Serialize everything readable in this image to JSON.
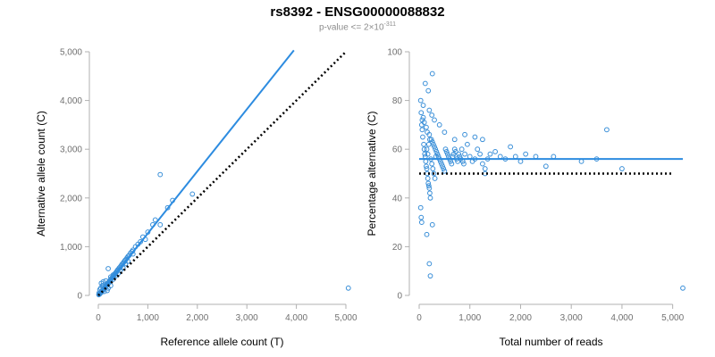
{
  "title": "rs8392 - ENSG00000088832",
  "subtitle": {
    "prefix": "p-value <= 2×10",
    "exponent": "-311"
  },
  "colors": {
    "point": "#3a8fd8",
    "fit_line": "#2d8ce0",
    "reference_line": "#000000"
  },
  "chart_data": [
    {
      "type": "scatter",
      "panel": "left",
      "xlabel": "Reference allele count (T)",
      "ylabel": "Alternative allele count (C)",
      "xlim": [
        0,
        5000
      ],
      "ylim": [
        0,
        5000
      ],
      "xticks": [
        0,
        1000,
        2000,
        3000,
        4000,
        5000
      ],
      "xtick_labels": [
        "0",
        "1,000",
        "2,000",
        "3,000",
        "4,000",
        "5,000"
      ],
      "yticks": [
        0,
        1000,
        2000,
        3000,
        4000,
        5000
      ],
      "ytick_labels": [
        "0",
        "1,000",
        "2,000",
        "3,000",
        "4,000",
        "5,000"
      ],
      "points": [
        [
          10,
          15
        ],
        [
          20,
          25
        ],
        [
          30,
          30
        ],
        [
          15,
          50
        ],
        [
          40,
          45
        ],
        [
          50,
          60
        ],
        [
          60,
          80
        ],
        [
          70,
          70
        ],
        [
          80,
          100
        ],
        [
          90,
          110
        ],
        [
          100,
          120
        ],
        [
          110,
          140
        ],
        [
          120,
          150
        ],
        [
          130,
          170
        ],
        [
          140,
          160
        ],
        [
          150,
          190
        ],
        [
          160,
          200
        ],
        [
          170,
          210
        ],
        [
          180,
          230
        ],
        [
          190,
          250
        ],
        [
          200,
          240
        ],
        [
          210,
          270
        ],
        [
          220,
          280
        ],
        [
          230,
          300
        ],
        [
          240,
          310
        ],
        [
          250,
          320
        ],
        [
          260,
          340
        ],
        [
          270,
          350
        ],
        [
          280,
          360
        ],
        [
          290,
          380
        ],
        [
          300,
          390
        ],
        [
          310,
          400
        ],
        [
          320,
          420
        ],
        [
          330,
          430
        ],
        [
          340,
          450
        ],
        [
          350,
          460
        ],
        [
          360,
          470
        ],
        [
          370,
          490
        ],
        [
          380,
          500
        ],
        [
          390,
          520
        ],
        [
          400,
          530
        ],
        [
          420,
          560
        ],
        [
          440,
          580
        ],
        [
          460,
          610
        ],
        [
          480,
          640
        ],
        [
          500,
          660
        ],
        [
          520,
          690
        ],
        [
          540,
          720
        ],
        [
          560,
          740
        ],
        [
          580,
          770
        ],
        [
          600,
          800
        ],
        [
          620,
          820
        ],
        [
          650,
          870
        ],
        [
          680,
          900
        ],
        [
          700,
          930
        ],
        [
          60,
          250
        ],
        [
          80,
          200
        ],
        [
          100,
          280
        ],
        [
          50,
          150
        ],
        [
          30,
          120
        ],
        [
          120,
          80
        ],
        [
          200,
          150
        ],
        [
          250,
          200
        ],
        [
          150,
          300
        ],
        [
          180,
          100
        ],
        [
          300,
          330
        ],
        [
          350,
          400
        ],
        [
          400,
          450
        ],
        [
          450,
          520
        ],
        [
          500,
          560
        ],
        [
          550,
          650
        ],
        [
          600,
          700
        ],
        [
          700,
          850
        ],
        [
          750,
          1000
        ],
        [
          800,
          1050
        ],
        [
          850,
          1100
        ],
        [
          900,
          1200
        ],
        [
          950,
          1150
        ],
        [
          1000,
          1300
        ],
        [
          1100,
          1450
        ],
        [
          1150,
          1550
        ],
        [
          1250,
          1450
        ],
        [
          1400,
          1800
        ],
        [
          1500,
          1950
        ],
        [
          1900,
          2080
        ],
        [
          1250,
          2480
        ],
        [
          200,
          550
        ],
        [
          300,
          420
        ],
        [
          100,
          200
        ],
        [
          250,
          380
        ],
        [
          5050,
          150
        ]
      ],
      "fit_line": {
        "x": [
          0,
          3950
        ],
        "y": [
          0,
          5030
        ]
      },
      "reference_line": {
        "x": [
          0,
          5000
        ],
        "y": [
          0,
          5000
        ]
      }
    },
    {
      "type": "scatter",
      "panel": "right",
      "xlabel": "Total number of reads",
      "ylabel": "Percentage alternative (C)",
      "xlim": [
        0,
        5200
      ],
      "ylim": [
        0,
        100
      ],
      "xticks": [
        0,
        1000,
        2000,
        3000,
        4000,
        5000
      ],
      "xtick_labels": [
        "0",
        "1,000",
        "2,000",
        "3,000",
        "4,000",
        "5,000"
      ],
      "yticks": [
        0,
        20,
        40,
        60,
        80,
        100
      ],
      "ytick_labels": [
        "0",
        "20",
        "40",
        "60",
        "80",
        "100"
      ],
      "points": [
        [
          30,
          80
        ],
        [
          40,
          75
        ],
        [
          50,
          70
        ],
        [
          60,
          68
        ],
        [
          70,
          65
        ],
        [
          80,
          78
        ],
        [
          90,
          62
        ],
        [
          100,
          60
        ],
        [
          110,
          58
        ],
        [
          120,
          57
        ],
        [
          130,
          55
        ],
        [
          140,
          53
        ],
        [
          150,
          52
        ],
        [
          160,
          50
        ],
        [
          170,
          48
        ],
        [
          180,
          46
        ],
        [
          190,
          45
        ],
        [
          200,
          44
        ],
        [
          210,
          42
        ],
        [
          220,
          40
        ],
        [
          30,
          36
        ],
        [
          40,
          32
        ],
        [
          50,
          30
        ],
        [
          150,
          25
        ],
        [
          200,
          13
        ],
        [
          220,
          8
        ],
        [
          260,
          29
        ],
        [
          260,
          91
        ],
        [
          120,
          87
        ],
        [
          180,
          84
        ],
        [
          60,
          72
        ],
        [
          80,
          73
        ],
        [
          100,
          71
        ],
        [
          140,
          69
        ],
        [
          160,
          67
        ],
        [
          200,
          66
        ],
        [
          240,
          64
        ],
        [
          260,
          63
        ],
        [
          280,
          62
        ],
        [
          300,
          61
        ],
        [
          320,
          60
        ],
        [
          340,
          59
        ],
        [
          360,
          58
        ],
        [
          380,
          57
        ],
        [
          400,
          56
        ],
        [
          420,
          55
        ],
        [
          440,
          54
        ],
        [
          460,
          53
        ],
        [
          480,
          52
        ],
        [
          500,
          51
        ],
        [
          520,
          60
        ],
        [
          540,
          59
        ],
        [
          560,
          58
        ],
        [
          580,
          57
        ],
        [
          600,
          56
        ],
        [
          620,
          55
        ],
        [
          640,
          54
        ],
        [
          660,
          57
        ],
        [
          680,
          58
        ],
        [
          700,
          60
        ],
        [
          720,
          59
        ],
        [
          740,
          56
        ],
        [
          760,
          55
        ],
        [
          780,
          58
        ],
        [
          800,
          57
        ],
        [
          820,
          56
        ],
        [
          840,
          60
        ],
        [
          860,
          55
        ],
        [
          880,
          54
        ],
        [
          900,
          58
        ],
        [
          950,
          62
        ],
        [
          1000,
          57
        ],
        [
          1050,
          55
        ],
        [
          1100,
          56
        ],
        [
          1150,
          60
        ],
        [
          1200,
          58
        ],
        [
          1250,
          54
        ],
        [
          1300,
          52
        ],
        [
          1350,
          56
        ],
        [
          1400,
          58
        ],
        [
          1300,
          50
        ],
        [
          1250,
          64
        ],
        [
          1100,
          65
        ],
        [
          900,
          66
        ],
        [
          700,
          64
        ],
        [
          500,
          67
        ],
        [
          400,
          70
        ],
        [
          300,
          72
        ],
        [
          250,
          74
        ],
        [
          200,
          76
        ],
        [
          150,
          60
        ],
        [
          170,
          58
        ],
        [
          190,
          62
        ],
        [
          210,
          64
        ],
        [
          230,
          56
        ],
        [
          250,
          54
        ],
        [
          270,
          52
        ],
        [
          290,
          50
        ],
        [
          310,
          48
        ],
        [
          330,
          57
        ],
        [
          1800,
          61
        ],
        [
          1900,
          57
        ],
        [
          2000,
          55
        ],
        [
          2100,
          58
        ],
        [
          2300,
          57
        ],
        [
          2500,
          53
        ],
        [
          2650,
          57
        ],
        [
          3200,
          55
        ],
        [
          3500,
          56
        ],
        [
          3700,
          68
        ],
        [
          4000,
          52
        ],
        [
          5200,
          3
        ],
        [
          1600,
          57
        ],
        [
          1700,
          56
        ],
        [
          1500,
          59
        ]
      ],
      "fit_line": {
        "x": [
          0,
          5200
        ],
        "y": [
          56,
          56
        ]
      },
      "reference_line": {
        "x": [
          0,
          5000
        ],
        "y": [
          50,
          50
        ]
      }
    }
  ]
}
